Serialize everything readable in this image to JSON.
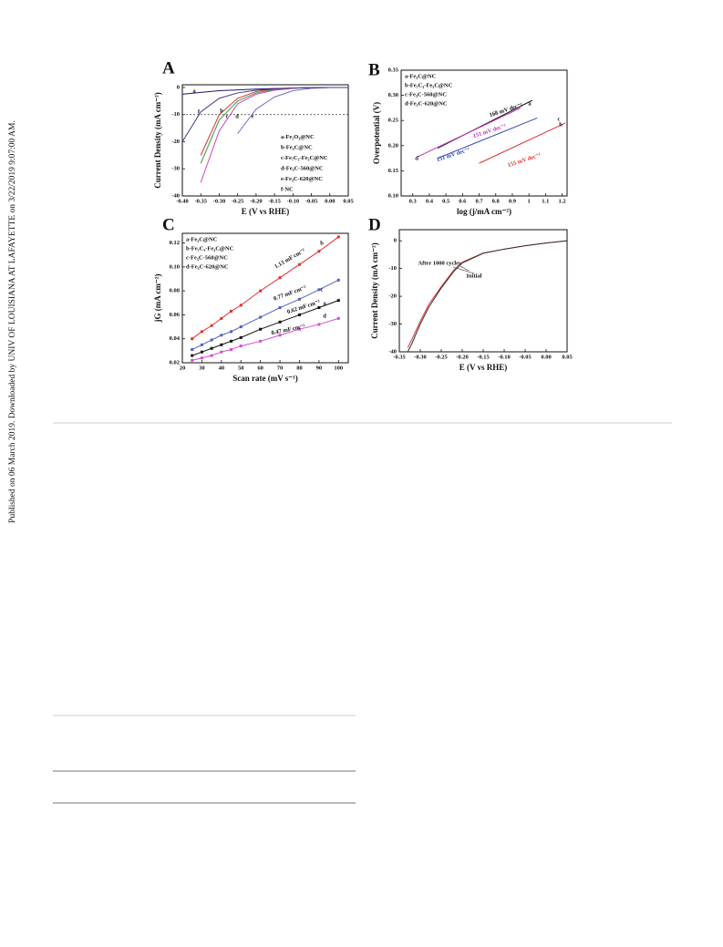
{
  "side_note": "Published on 06 March 2019. Downloaded by UNIV OF LOUISIANA AT LAFAYETTE on 3/22/2019 9:07:00 AM.",
  "chart_data": [
    {
      "type": "line",
      "panel_label": "A",
      "x_label": "E (V vs RHE)",
      "y_label": "Current Density (mA cm⁻²)",
      "x": [
        -0.4,
        -0.35,
        -0.3,
        -0.25,
        -0.2,
        -0.15,
        -0.1,
        -0.05,
        0,
        0.05
      ],
      "series": [
        {
          "name": "a-Fe₂O₃@NC",
          "color": "#1a1a6e",
          "values": [
            -2.5,
            -1.8,
            -1.2,
            -0.9,
            -0.6,
            -0.4,
            -0.2,
            -0.1,
            0,
            0
          ]
        },
        {
          "name": "b-Fe₃C@NC",
          "color": "#e03030",
          "values": [
            null,
            -25,
            -10,
            -4,
            -1.5,
            -0.5,
            -0.2,
            0,
            0,
            0
          ]
        },
        {
          "name": "c-Fe₇C₃-Fe₃C@NC",
          "color": "#3a9a3a",
          "values": [
            null,
            -28,
            -12,
            -5,
            -2,
            -0.7,
            -0.2,
            0,
            0,
            0
          ]
        },
        {
          "name": "d-Fe₃C-560@NC",
          "color": "#d040c0",
          "values": [
            null,
            -35,
            -16,
            -6,
            -2.5,
            -1,
            -0.3,
            0,
            0,
            0
          ]
        },
        {
          "name": "e-Fe₃C-620@NC",
          "color": "#7070c8",
          "values": [
            null,
            null,
            null,
            -17,
            -8,
            -3.5,
            -1.2,
            -0.3,
            0,
            0
          ]
        },
        {
          "name": "f-NC",
          "color": "#3a3a8a",
          "values": [
            -20,
            -9,
            -4,
            -2,
            -1,
            -0.5,
            -0.2,
            -0.1,
            0,
            0
          ]
        }
      ],
      "annotations": [
        "a",
        "b",
        "c",
        "d",
        "e",
        "f"
      ],
      "hline": -10,
      "xlim": [
        -0.4,
        0.05
      ],
      "ylim": [
        -40,
        1
      ],
      "xticks": [
        {
          "value": -0.4,
          "label": "-0.40"
        },
        -0.35,
        {
          "value": -0.3,
          "label": "-0.30"
        },
        -0.25,
        {
          "value": -0.2,
          "label": "-0.20"
        },
        -0.15,
        {
          "value": -0.1,
          "label": "-0.10"
        },
        -0.05,
        {
          "value": 0,
          "label": "0.00"
        },
        0.05
      ],
      "yticks": [
        0,
        -10,
        -20,
        -30,
        -40
      ],
      "legend": "lower right"
    },
    {
      "type": "line",
      "panel_label": "B",
      "x_label": "log (j/mA cm⁻²)",
      "y_label": "Overpotential (V)",
      "series": [
        {
          "name": "a-Fe₃C@NC",
          "color": "#111111",
          "x": [
            0.45,
            1.02
          ],
          "values": [
            0.195,
            0.29
          ]
        },
        {
          "name": "b-Fe₇C₃-Fe₃C@NC",
          "color": "#e03030",
          "x": [
            0.7,
            1.22
          ],
          "values": [
            0.165,
            0.245
          ]
        },
        {
          "name": "c-Fe₃C-560@NC",
          "color": "#3048b0",
          "x": [
            0.45,
            1.05
          ],
          "values": [
            0.175,
            0.255
          ]
        },
        {
          "name": "d-Fe₃C-620@NC",
          "color": "#c030c0",
          "x": [
            0.33,
            0.95
          ],
          "values": [
            0.178,
            0.275
          ]
        }
      ],
      "annotations": [
        "168 mV dec⁻¹",
        "151 mV dec⁻¹",
        "151 mV dec⁻¹",
        "155 mV dec⁻¹",
        "a",
        "b",
        "c",
        "d"
      ],
      "xlim": [
        0.23,
        1.23
      ],
      "ylim": [
        0.1,
        0.35
      ],
      "xticks": [
        0.3,
        0.4,
        0.5,
        0.6,
        0.7,
        0.8,
        0.9,
        1,
        1.1,
        1.2
      ],
      "yticks": [
        {
          "value": 0.1,
          "label": "0.10"
        },
        0.15,
        {
          "value": 0.2,
          "label": "0.20"
        },
        0.25,
        {
          "value": 0.3,
          "label": "0.30"
        },
        0.35
      ],
      "legend": "upper left"
    },
    {
      "type": "line",
      "panel_label": "C",
      "x_label": "Scan rate (mV s⁻¹)",
      "y_label": "jG (mA cm⁻²)",
      "markers": true,
      "x": [
        25,
        30,
        35,
        40,
        45,
        50,
        60,
        70,
        80,
        90,
        100
      ],
      "series": [
        {
          "name": "a-Fe₃C@NC",
          "color": "#111111",
          "values": [
            0.026,
            0.029,
            0.032,
            0.035,
            0.038,
            0.041,
            0.048,
            0.054,
            0.06,
            0.066,
            0.072
          ]
        },
        {
          "name": "b-Fe₇C₃-Fe₃C@NC",
          "color": "#e03030",
          "values": [
            0.04,
            0.046,
            0.051,
            0.057,
            0.063,
            0.068,
            0.08,
            0.091,
            0.102,
            0.113,
            0.125
          ]
        },
        {
          "name": "c-Fe₃C-560@NC",
          "color": "#5060c0",
          "values": [
            0.031,
            0.035,
            0.039,
            0.043,
            0.046,
            0.05,
            0.058,
            0.066,
            0.073,
            0.081,
            0.089
          ]
        },
        {
          "name": "d-Fe₃C-620@NC",
          "color": "#d050d0",
          "values": [
            0.022,
            0.024,
            0.026,
            0.029,
            0.031,
            0.034,
            0.038,
            0.043,
            0.048,
            0.052,
            0.057
          ]
        }
      ],
      "annotations": [
        "1.13 mF cm⁻²",
        "0.77 mF cm⁻²",
        "0.62 mF cm⁻²",
        "0.47 mF cm⁻²",
        "a",
        "b",
        "c",
        "d"
      ],
      "xlim": [
        20,
        105
      ],
      "ylim": [
        0.02,
        0.128
      ],
      "xticks": [
        20,
        30,
        40,
        50,
        60,
        70,
        80,
        90,
        100
      ],
      "yticks": [
        0.02,
        0.04,
        0.06,
        0.08,
        {
          "value": 0.1,
          "label": "0.10"
        },
        0.12
      ],
      "legend": "upper left"
    },
    {
      "type": "line",
      "panel_label": "D",
      "x_label": "E (V vs RHE)",
      "y_label": "Current Density (mA cm⁻²)",
      "x": [
        -0.33,
        -0.32,
        -0.3,
        -0.28,
        -0.25,
        -0.22,
        -0.2,
        -0.15,
        -0.1,
        -0.05,
        0,
        0.05
      ],
      "series": [
        {
          "name": "After 1000 cycles",
          "color": "#e03030",
          "values": [
            -38.5,
            -35.5,
            -29,
            -23,
            -16.5,
            -10.5,
            -7.7,
            -4.4,
            -3,
            -1.8,
            -0.8,
            0
          ]
        },
        {
          "name": "Initial",
          "color": "#333333",
          "values": [
            -40,
            -37,
            -30,
            -24,
            -17,
            -11,
            -8,
            -4.5,
            -3,
            -1.8,
            -0.8,
            0
          ]
        }
      ],
      "xlim": [
        -0.35,
        0.05
      ],
      "ylim": [
        -40,
        4
      ],
      "xticks": [
        -0.35,
        {
          "value": -0.3,
          "label": "-0.30"
        },
        -0.25,
        {
          "value": -0.2,
          "label": "-0.20"
        },
        -0.15,
        {
          "value": -0.1,
          "label": "-0.10"
        },
        -0.05,
        {
          "value": 0,
          "label": "0.00"
        },
        0.05
      ],
      "yticks": [
        0,
        -10,
        -20,
        -30,
        -40
      ]
    }
  ]
}
